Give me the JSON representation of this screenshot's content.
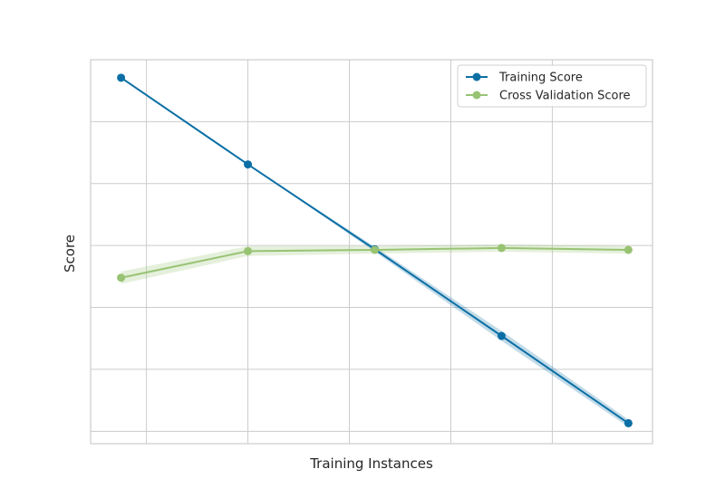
{
  "chart_data": {
    "type": "line",
    "title": "",
    "xlabel": "Training Instances",
    "ylabel": "Score",
    "x": [
      1,
      2,
      3,
      4,
      5
    ],
    "xlim": [
      0.76,
      5.19
    ],
    "ylim": [
      -0.02,
      0.6
    ],
    "grid": true,
    "legend_position": "top-right",
    "series": [
      {
        "name": "Training Score",
        "color": "#0b6fa5",
        "values": [
          0.571,
          0.431,
          0.294,
          0.154,
          0.013
        ],
        "band": [
          0.0,
          0.0,
          0.004,
          0.008,
          0.006
        ]
      },
      {
        "name": "Cross Validation Score",
        "color": "#98c373",
        "values": [
          0.248,
          0.291,
          0.293,
          0.296,
          0.293
        ],
        "band": [
          0.01,
          0.008,
          0.006,
          0.006,
          0.006
        ]
      }
    ]
  }
}
